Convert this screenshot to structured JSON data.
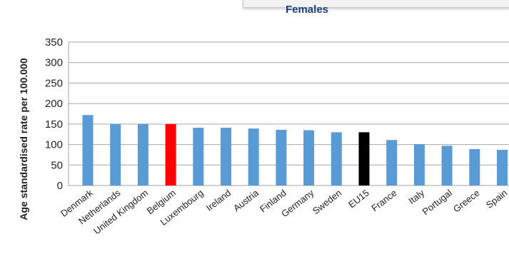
{
  "chart_data": {
    "type": "bar",
    "title": "Females",
    "ylabel": "Age standardised rate per 100.000",
    "xlabel": "",
    "ylim": [
      0,
      350
    ],
    "yticks": [
      0,
      50,
      100,
      150,
      200,
      250,
      300,
      350
    ],
    "grid": true,
    "categories": [
      "Denmark",
      "Netherlands",
      "United Kingdom",
      "Belgium",
      "Luxembourg",
      "Ireland",
      "Austria",
      "Finland",
      "Germany",
      "Sweden",
      "EU15",
      "France",
      "Italy",
      "Portugal",
      "Greece",
      "Spain"
    ],
    "values": [
      172,
      150,
      150,
      150,
      141,
      141,
      139,
      136,
      135,
      130,
      130,
      111,
      101,
      97,
      89,
      87
    ],
    "colors": [
      "#5b9bd5",
      "#5b9bd5",
      "#5b9bd5",
      "#ff0000",
      "#5b9bd5",
      "#5b9bd5",
      "#5b9bd5",
      "#5b9bd5",
      "#5b9bd5",
      "#5b9bd5",
      "#000000",
      "#5b9bd5",
      "#5b9bd5",
      "#5b9bd5",
      "#5b9bd5",
      "#5b9bd5"
    ]
  }
}
